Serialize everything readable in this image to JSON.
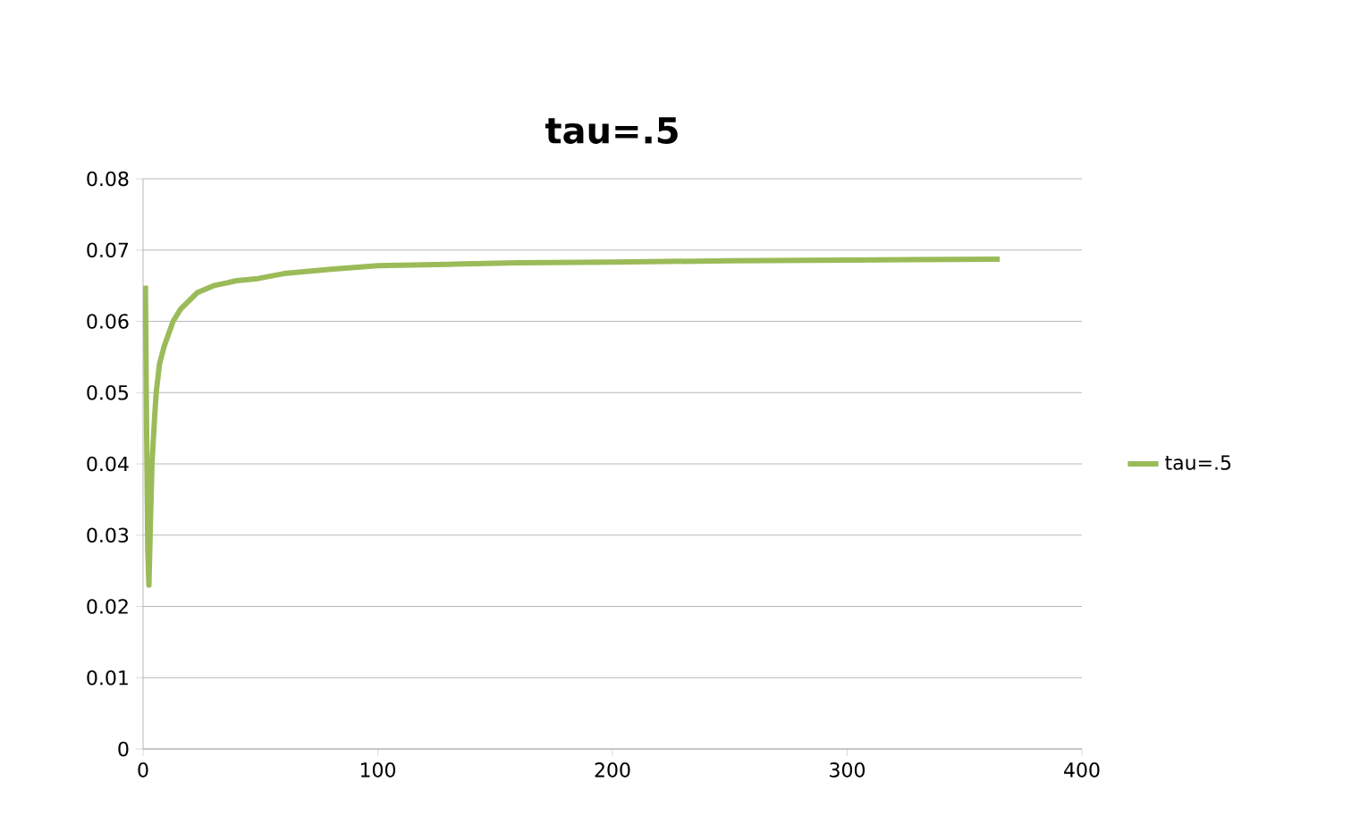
{
  "chart_data": {
    "type": "line",
    "title": "tau=.5",
    "series": [
      {
        "name": "tau=.5",
        "color": "#9bbb59",
        "x": [
          1,
          1.5,
          2,
          2.5,
          3,
          3.8,
          5,
          5.6,
          7,
          9,
          12.8,
          16,
          23,
          30,
          40,
          49,
          60,
          80,
          100,
          130,
          160,
          200,
          250,
          300,
          365
        ],
        "values": [
          0.065,
          0.045,
          0.028,
          0.023,
          0.03,
          0.04,
          0.047,
          0.05,
          0.054,
          0.0565,
          0.06,
          0.0617,
          0.064,
          0.065,
          0.0657,
          0.066,
          0.0667,
          0.0673,
          0.0678,
          0.068,
          0.0682,
          0.0683,
          0.0685,
          0.0686,
          0.0687
        ]
      }
    ],
    "xlim": [
      0,
      400
    ],
    "xticks": [
      0,
      100,
      200,
      300,
      400
    ],
    "ylim": [
      0,
      0.08
    ],
    "yticks": [
      {
        "value": 0,
        "label": "0"
      },
      {
        "value": 0.01,
        "label": "0.01"
      },
      {
        "value": 0.02,
        "label": "0.02"
      },
      {
        "value": 0.03,
        "label": "0.03"
      },
      {
        "value": 0.04,
        "label": "0.04"
      },
      {
        "value": 0.05,
        "label": "0.05"
      },
      {
        "value": 0.06,
        "label": "0.06"
      },
      {
        "value": 0.07,
        "label": "0.07"
      },
      {
        "value": 0.08,
        "label": "0.08"
      }
    ],
    "grid": "y",
    "legend": "right",
    "marker": "none",
    "line_style": "solid"
  }
}
